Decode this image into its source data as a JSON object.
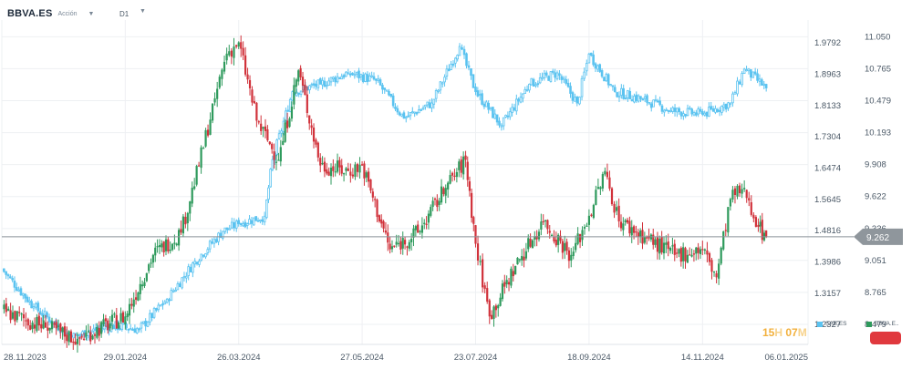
{
  "header": {
    "symbol": "BBVA.ES",
    "type": "Acción",
    "timeframe": "D1"
  },
  "countdown": {
    "hours": "15",
    "hours_unit": "H",
    "minutes": "07",
    "minutes_unit": "M"
  },
  "legend": [
    {
      "name": "SAB.ES",
      "color": "#5bc3f0"
    },
    {
      "name": "BBVA.E..",
      "color": "#2e9a5c"
    }
  ],
  "colors": {
    "up": "#2e9a5c",
    "down": "#d1323b",
    "compare": "#5bc3f0",
    "grid": "#eef0f3",
    "price_line": "#8a9299",
    "price_label_bg": "#8f969c"
  },
  "chart_data": {
    "type": "candlestick",
    "title": "",
    "xlabel": "",
    "ylabel": "",
    "grid": true,
    "x_tick_labels": [
      "28.11.2023",
      "29.01.2024",
      "26.03.2024",
      "27.05.2024",
      "23.07.2024",
      "18.09.2024",
      "14.11.2024",
      "06.01.2025"
    ],
    "left_axis": {
      "label": "SAB.ES",
      "ticks": [
        "1.9792",
        "1.8963",
        "1.8133",
        "1.7304",
        "1.6474",
        "1.5645",
        "1.4816",
        "1.3986",
        "1.3157",
        "1.2327"
      ],
      "range": [
        1.18,
        2.04
      ]
    },
    "right_axis": {
      "label": "BBVA.ES",
      "ticks": [
        "11.050",
        "10.765",
        "10.479",
        "10.193",
        "9.908",
        "9.622",
        "9.336",
        "9.051",
        "8.765",
        "8.479"
      ],
      "range": [
        8.3,
        11.2
      ]
    },
    "current_price": "9.262",
    "series": [
      {
        "name": "BBVA.ES",
        "kind": "candlestick",
        "axis": "right",
        "points": [
          {
            "date": "2023-11-28",
            "close": 8.6
          },
          {
            "date": "2023-12-20",
            "close": 8.45
          },
          {
            "date": "2024-01-05",
            "close": 8.35
          },
          {
            "date": "2024-01-29",
            "close": 8.55
          },
          {
            "date": "2024-02-12",
            "close": 9.1
          },
          {
            "date": "2024-02-26",
            "close": 9.3
          },
          {
            "date": "2024-03-06",
            "close": 9.9
          },
          {
            "date": "2024-03-14",
            "close": 10.5
          },
          {
            "date": "2024-03-20",
            "close": 10.9
          },
          {
            "date": "2024-03-26",
            "close": 11.0
          },
          {
            "date": "2024-04-04",
            "close": 10.3
          },
          {
            "date": "2024-04-15",
            "close": 9.95
          },
          {
            "date": "2024-04-25",
            "close": 10.75
          },
          {
            "date": "2024-05-06",
            "close": 9.9
          },
          {
            "date": "2024-05-20",
            "close": 9.85
          },
          {
            "date": "2024-05-27",
            "close": 9.9
          },
          {
            "date": "2024-06-10",
            "close": 9.15
          },
          {
            "date": "2024-06-24",
            "close": 9.3
          },
          {
            "date": "2024-07-08",
            "close": 9.7
          },
          {
            "date": "2024-07-18",
            "close": 9.95
          },
          {
            "date": "2024-07-23",
            "close": 9.2
          },
          {
            "date": "2024-07-30",
            "close": 8.55
          },
          {
            "date": "2024-08-12",
            "close": 9.0
          },
          {
            "date": "2024-08-26",
            "close": 9.4
          },
          {
            "date": "2024-09-09",
            "close": 9.1
          },
          {
            "date": "2024-09-18",
            "close": 9.45
          },
          {
            "date": "2024-09-26",
            "close": 9.85
          },
          {
            "date": "2024-10-03",
            "close": 9.4
          },
          {
            "date": "2024-10-17",
            "close": 9.25
          },
          {
            "date": "2024-10-31",
            "close": 9.1
          },
          {
            "date": "2024-11-14",
            "close": 9.15
          },
          {
            "date": "2024-11-21",
            "close": 8.9
          },
          {
            "date": "2024-11-28",
            "close": 9.6
          },
          {
            "date": "2024-12-05",
            "close": 9.7
          },
          {
            "date": "2024-12-12",
            "close": 9.35
          },
          {
            "date": "2024-12-16",
            "close": 9.262
          }
        ]
      },
      {
        "name": "SAB.ES",
        "kind": "candlestick",
        "axis": "left",
        "points": [
          {
            "date": "2023-11-28",
            "close": 1.38
          },
          {
            "date": "2023-12-14",
            "close": 1.28
          },
          {
            "date": "2024-01-02",
            "close": 1.2
          },
          {
            "date": "2024-01-22",
            "close": 1.23
          },
          {
            "date": "2024-02-05",
            "close": 1.22
          },
          {
            "date": "2024-02-19",
            "close": 1.3
          },
          {
            "date": "2024-03-04",
            "close": 1.4
          },
          {
            "date": "2024-03-18",
            "close": 1.48
          },
          {
            "date": "2024-03-26",
            "close": 1.5
          },
          {
            "date": "2024-04-08",
            "close": 1.52
          },
          {
            "date": "2024-04-12",
            "close": 1.67
          },
          {
            "date": "2024-04-22",
            "close": 1.85
          },
          {
            "date": "2024-05-06",
            "close": 1.87
          },
          {
            "date": "2024-05-20",
            "close": 1.9
          },
          {
            "date": "2024-06-03",
            "close": 1.88
          },
          {
            "date": "2024-06-17",
            "close": 1.78
          },
          {
            "date": "2024-07-01",
            "close": 1.82
          },
          {
            "date": "2024-07-15",
            "close": 1.97
          },
          {
            "date": "2024-07-23",
            "close": 1.85
          },
          {
            "date": "2024-08-05",
            "close": 1.76
          },
          {
            "date": "2024-08-19",
            "close": 1.87
          },
          {
            "date": "2024-09-02",
            "close": 1.9
          },
          {
            "date": "2024-09-12",
            "close": 1.82
          },
          {
            "date": "2024-09-18",
            "close": 1.95
          },
          {
            "date": "2024-10-01",
            "close": 1.85
          },
          {
            "date": "2024-10-15",
            "close": 1.83
          },
          {
            "date": "2024-10-29",
            "close": 1.8
          },
          {
            "date": "2024-11-14",
            "close": 1.79
          },
          {
            "date": "2024-11-28",
            "close": 1.82
          },
          {
            "date": "2024-12-05",
            "close": 1.91
          },
          {
            "date": "2024-12-16",
            "close": 1.86
          }
        ]
      }
    ]
  }
}
